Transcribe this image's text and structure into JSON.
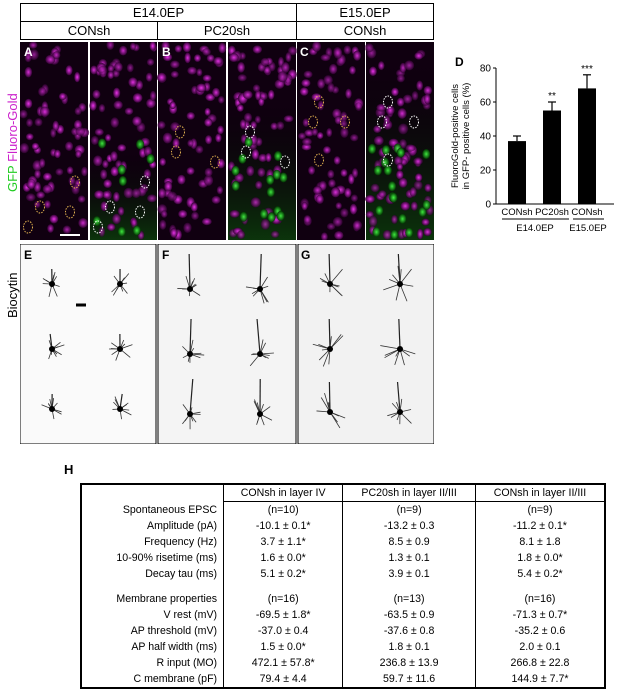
{
  "headers": {
    "e14": "E14.0EP",
    "e15": "E15.0EP",
    "a_sub": "CONsh",
    "b_sub": "PC20sh",
    "c_sub": "CONsh"
  },
  "panel_labels": {
    "A": "A",
    "B": "B",
    "C": "C",
    "D": "D",
    "E": "E",
    "F": "F",
    "G": "G",
    "H": "H"
  },
  "side_labels": {
    "gfp": "GFP",
    "fluoro": "Fluoro-Gold",
    "biocytin": "Biocytin"
  },
  "colors": {
    "gfp": "#22dd22",
    "fluoro": "#dd22dd"
  },
  "chart_data": {
    "type": "bar",
    "ylabel_line1": "FluoroGold-positive cells",
    "ylabel_line2": "in GFP- positive cells (%)",
    "ylim": [
      0,
      80
    ],
    "yticks": [
      "0",
      "20",
      "40",
      "60",
      "80"
    ],
    "categories": [
      "CONsh",
      "PC20sh",
      "CONsh"
    ],
    "groups": [
      "E14.0EP",
      "E15.0EP"
    ],
    "values": [
      37,
      55,
      68
    ],
    "errors": [
      3,
      5,
      8
    ],
    "significance": [
      "",
      "**",
      "***"
    ]
  },
  "table": {
    "columns": [
      "CONsh in layer IV",
      "PC20sh in layer II/III",
      "CONsh in layer II/III"
    ],
    "rows": [
      {
        "label": "Spontaneous EPSC",
        "v": [
          "(n=10)",
          "(n=9)",
          "(n=9)"
        ]
      },
      {
        "label": "Amplitude (pA)",
        "v": [
          "-10.1 ± 0.1*",
          "-13.2 ± 0.3",
          "-11.2 ± 0.1*"
        ]
      },
      {
        "label": "Frequency (Hz)",
        "v": [
          "3.7 ± 1.1*",
          "8.5 ± 0.9",
          "8.1 ± 1.8"
        ]
      },
      {
        "label": "10-90% risetime (ms)",
        "v": [
          "1.6 ± 0.0*",
          "1.3 ± 0.1",
          "1.8 ± 0.0*"
        ]
      },
      {
        "label": "Decay tau (ms)",
        "v": [
          "5.1 ± 0.2*",
          "3.9 ± 0.1",
          "5.4 ± 0.2*"
        ]
      },
      {
        "label": "Membrane properties",
        "v": [
          "(n=16)",
          "(n=13)",
          "(n=16)"
        ]
      },
      {
        "label": "V rest (mV)",
        "v": [
          "-69.5 ± 1.8*",
          "-63.5 ± 0.9",
          "-71.3 ± 0.7*"
        ]
      },
      {
        "label": "AP threshold (mV)",
        "v": [
          "-37.0 ± 0.4",
          "-37.6 ± 0.8",
          "-35.2 ± 0.6"
        ]
      },
      {
        "label": "AP half width (ms)",
        "v": [
          "1.5 ± 0.0*",
          "1.8 ± 0.1",
          "2.0 ± 0.1"
        ]
      },
      {
        "label": "R input (MO)",
        "v": [
          "472.1 ± 57.8*",
          "236.8 ± 13.9",
          "266.8 ± 22.8"
        ]
      },
      {
        "label": "C membrane (pF)",
        "v": [
          "79.4 ± 4.4",
          "59.7 ± 11.6",
          "144.9 ± 7.7*"
        ]
      }
    ]
  }
}
